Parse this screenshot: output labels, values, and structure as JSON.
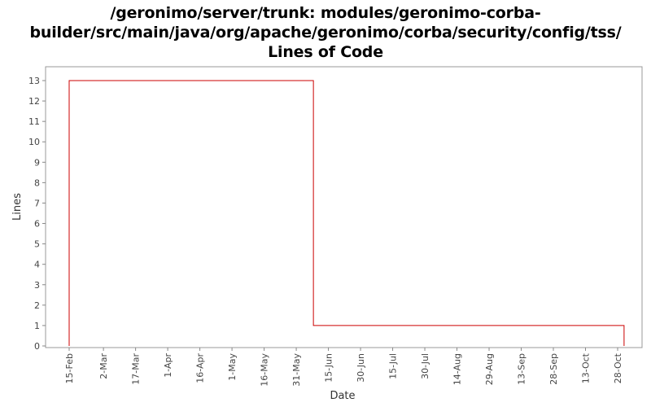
{
  "title": {
    "line1": "/geronimo/server/trunk: modules/geronimo-corba-",
    "line2": "builder/src/main/java/org/apache/geronimo/corba/security/config/tss/",
    "line3": "Lines of Code"
  },
  "chart_data": {
    "type": "line",
    "step": true,
    "title": "/geronimo/server/trunk: modules/geronimo-corba-builder/src/main/java/org/apache/geronimo/corba/security/config/tss/ Lines of Code",
    "xlabel": "Date",
    "ylabel": "Lines",
    "ylim": [
      0,
      13
    ],
    "yticks": [
      0,
      1,
      2,
      3,
      4,
      5,
      6,
      7,
      8,
      9,
      10,
      11,
      12,
      13
    ],
    "xticks": [
      "15-Feb",
      "2-Mar",
      "17-Mar",
      "1-Apr",
      "16-Apr",
      "1-May",
      "16-May",
      "31-May",
      "15-Jun",
      "30-Jun",
      "15-Jul",
      "30-Jul",
      "14-Aug",
      "29-Aug",
      "13-Sep",
      "28-Sep",
      "13-Oct",
      "28-Oct"
    ],
    "grid": false,
    "legend": "none",
    "series": [
      {
        "color": "#cc0000",
        "points": [
          {
            "x": "15-Feb",
            "y": 13
          },
          {
            "x": "8-Jun",
            "y": 1
          },
          {
            "x": "31-Oct",
            "y": 0
          }
        ]
      }
    ]
  }
}
